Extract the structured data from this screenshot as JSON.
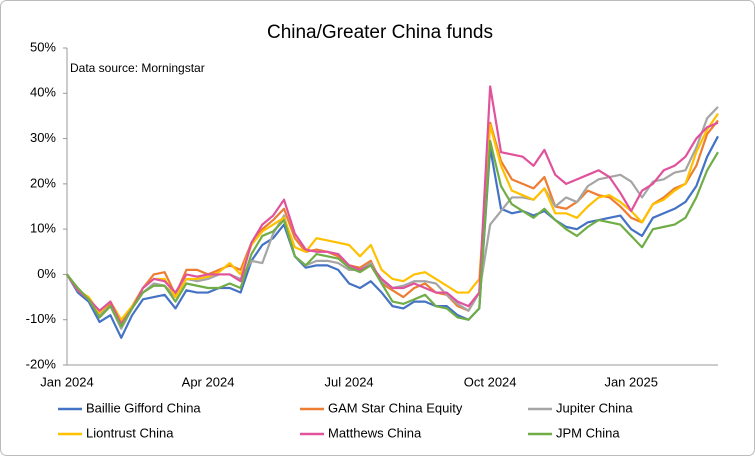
{
  "chart_data": {
    "type": "line",
    "title": "China/Greater China funds",
    "annotation": "Data source: Morningstar",
    "categories": [
      "Jan 2024",
      null,
      null,
      null,
      null,
      null,
      null,
      null,
      null,
      null,
      null,
      null,
      null,
      "Apr 2024",
      null,
      null,
      null,
      null,
      null,
      null,
      null,
      null,
      null,
      null,
      null,
      null,
      "Jul 2024",
      null,
      null,
      null,
      null,
      null,
      null,
      null,
      null,
      null,
      null,
      null,
      null,
      "Oct 2024",
      null,
      null,
      null,
      null,
      null,
      null,
      null,
      null,
      null,
      null,
      null,
      null,
      "Jan 2025",
      null,
      null,
      null,
      null,
      null,
      null,
      null,
      null
    ],
    "ylim": [
      -20,
      50
    ],
    "yticks": [
      {
        "value": -20,
        "label": "-20%"
      },
      {
        "value": -10,
        "label": "-10%"
      },
      {
        "value": 0,
        "label": "0%"
      },
      {
        "value": 10,
        "label": "10%"
      },
      {
        "value": 20,
        "label": "20%"
      },
      {
        "value": 30,
        "label": "30%"
      },
      {
        "value": 40,
        "label": "40%"
      },
      {
        "value": 50,
        "label": "50%"
      }
    ],
    "grid": false,
    "series": [
      {
        "name": "Baillie Gifford China",
        "color": "#4472c4",
        "values": [
          0,
          -4,
          -6,
          -10.5,
          -9,
          -14,
          -9,
          -5.5,
          -5,
          -4.5,
          -7.5,
          -3.5,
          -4,
          -4,
          -3,
          -3,
          -4,
          3,
          6.5,
          8,
          11,
          4,
          1.5,
          2,
          2,
          1,
          -2,
          -3,
          -1.5,
          -4,
          -7,
          -7.5,
          -6,
          -6,
          -7,
          -7,
          -9,
          -10,
          -7.5,
          28,
          14.5,
          13.5,
          14,
          13,
          14,
          12,
          10.5,
          10,
          11.5,
          12,
          12.5,
          13,
          10,
          8.5,
          12.5,
          13.5,
          14.5,
          16,
          19.5,
          26,
          30.5
        ]
      },
      {
        "name": "GAM Star China Equity",
        "color": "#ed7d31",
        "values": [
          0,
          -3.5,
          -5.5,
          -9,
          -6.5,
          -10.5,
          -7,
          -3,
          0,
          0.5,
          -4.5,
          1,
          1,
          0,
          1,
          2,
          1,
          7,
          10,
          12,
          14.5,
          8,
          5,
          5.5,
          5,
          4,
          2,
          1.5,
          3,
          -2,
          -3.5,
          -5,
          -3,
          -2,
          -4,
          -4.5,
          -7,
          -8,
          -4,
          33.5,
          25,
          21,
          20,
          19,
          21.5,
          15,
          14.5,
          16,
          18.5,
          17.5,
          17,
          15,
          12.5,
          11.5,
          15.5,
          17,
          19,
          20,
          24,
          31,
          34
        ]
      },
      {
        "name": "Jupiter China",
        "color": "#a5a5a5",
        "values": [
          0,
          -3.5,
          -5.5,
          -9,
          -7,
          -12,
          -7.5,
          -4,
          -2,
          -2.5,
          -5,
          -1,
          -1.5,
          -1,
          0,
          0,
          -1,
          3,
          2.5,
          9,
          13,
          4,
          2,
          3,
          3,
          2.5,
          1,
          1,
          2.5,
          -1.5,
          -3,
          -2.5,
          -1.5,
          -1.5,
          -2,
          -4.5,
          -6.5,
          -8,
          -4,
          11,
          14,
          17,
          17,
          16.5,
          19,
          15,
          17,
          16,
          19.5,
          21,
          21.5,
          22,
          20.5,
          17,
          20.5,
          21,
          22.5,
          23,
          28,
          34.5,
          37
        ]
      },
      {
        "name": "Liontrust China",
        "color": "#ffc000",
        "values": [
          0,
          -3.5,
          -5,
          -8.5,
          -6,
          -10,
          -7,
          -3,
          -1,
          -1,
          -5,
          -1,
          -1,
          -0.5,
          0.5,
          2.5,
          0,
          6.5,
          9.5,
          11,
          12.5,
          6,
          5,
          8,
          7.5,
          7,
          6.5,
          4,
          6.5,
          1,
          -1,
          -1.5,
          0,
          0.5,
          -1,
          -2.5,
          -4,
          -4,
          -1,
          33,
          24,
          18.5,
          17.5,
          16.5,
          19,
          13.5,
          13.5,
          12.5,
          15,
          17,
          17.5,
          16,
          14,
          11.5,
          15.5,
          16.5,
          18.5,
          20,
          27,
          32,
          35.5
        ]
      },
      {
        "name": "Matthews China",
        "color": "#e0529c",
        "values": [
          0,
          -3.5,
          -5.5,
          -8,
          -6,
          -11,
          -7.5,
          -3,
          -1,
          -1.5,
          -4,
          0,
          -0.5,
          0,
          0,
          0,
          -1.5,
          7,
          11,
          13,
          16.5,
          9,
          5.5,
          5,
          5,
          4.5,
          2,
          1,
          2,
          -1,
          -3,
          -3,
          -2,
          -3,
          -4,
          -4,
          -6,
          -7,
          -4,
          41.5,
          27,
          26.5,
          26,
          24,
          27.5,
          22,
          20,
          21,
          22,
          23,
          21.5,
          18,
          14,
          18.5,
          20,
          23,
          24,
          26,
          30,
          32.5,
          33.5
        ]
      },
      {
        "name": "JPM China",
        "color": "#70ad47",
        "values": [
          0,
          -3,
          -5.5,
          -9.5,
          -7,
          -11.5,
          -7.5,
          -4,
          -2.5,
          -2.5,
          -6,
          -2,
          -2.5,
          -3,
          -3,
          -2,
          -3,
          4.5,
          8.5,
          9.5,
          12,
          4,
          2,
          4.5,
          4,
          3.5,
          1.5,
          0.5,
          2,
          -2,
          -6,
          -6.5,
          -5.5,
          -4.5,
          -7,
          -7.5,
          -9.5,
          -10,
          -7.5,
          29.5,
          19.5,
          15.5,
          14,
          12.5,
          14.5,
          12,
          10,
          8.5,
          10.5,
          12,
          11.5,
          11,
          8.5,
          6,
          10,
          10.5,
          11,
          12.5,
          17,
          23,
          27
        ]
      }
    ]
  }
}
